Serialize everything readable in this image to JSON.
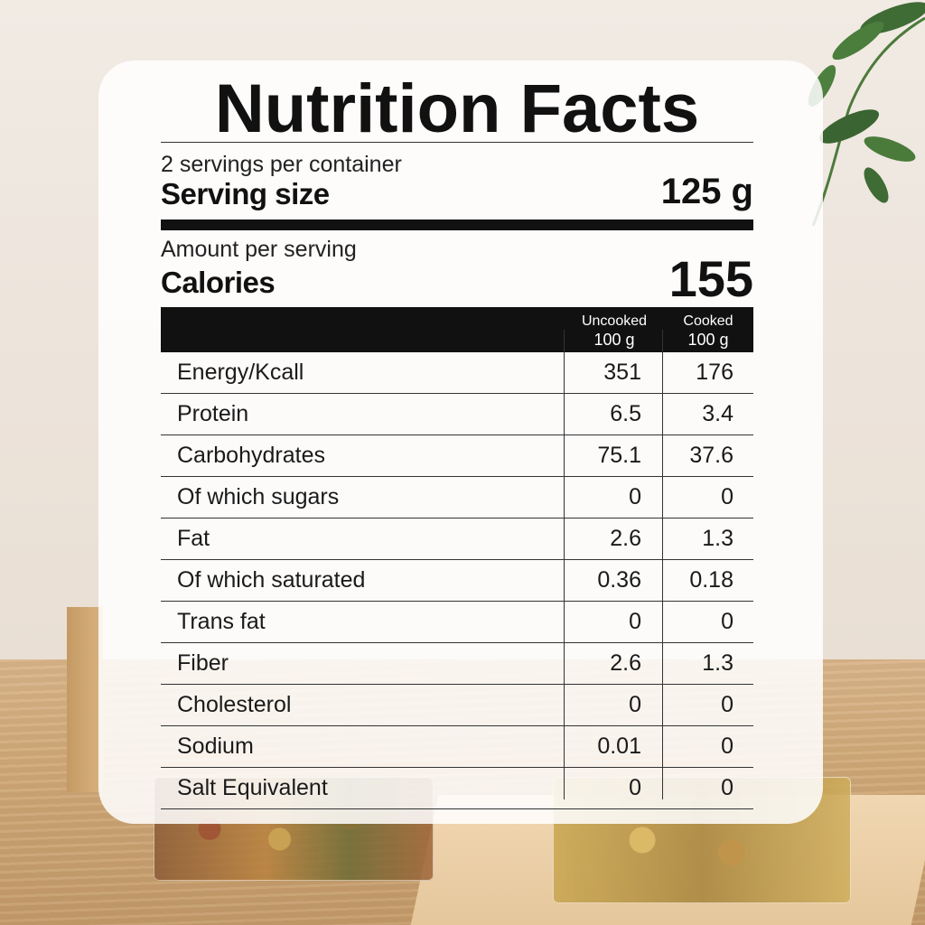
{
  "label": {
    "title": "Nutrition Facts",
    "servings": "2 servings per container",
    "serving_size_label": "Serving size",
    "serving_size_value": "125 g",
    "amount_label": "Amount per serving",
    "calories_label": "Calories",
    "calories_value": "155"
  },
  "table": {
    "columns": [
      {
        "top": "Uncooked",
        "bottom": "100 g"
      },
      {
        "top": "Cooked",
        "bottom": "100 g"
      }
    ],
    "rows": [
      {
        "name": "Energy/Kcall",
        "uncooked": "351",
        "cooked": "176"
      },
      {
        "name": "Protein",
        "uncooked": "6.5",
        "cooked": "3.4"
      },
      {
        "name": "Carbohydrates",
        "uncooked": "75.1",
        "cooked": "37.6"
      },
      {
        "name": "Of which sugars",
        "uncooked": "0",
        "cooked": "0"
      },
      {
        "name": "Fat",
        "uncooked": "2.6",
        "cooked": "1.3"
      },
      {
        "name": "Of which saturated",
        "uncooked": "0.36",
        "cooked": "0.18"
      },
      {
        "name": "Trans fat",
        "uncooked": "0",
        "cooked": "0"
      },
      {
        "name": "Fiber",
        "uncooked": "2.6",
        "cooked": "1.3"
      },
      {
        "name": "Cholesterol",
        "uncooked": "0",
        "cooked": "0"
      },
      {
        "name": "Sodium",
        "uncooked": "0.01",
        "cooked": "0"
      },
      {
        "name": "Salt Equivalent",
        "uncooked": "0",
        "cooked": "0"
      }
    ]
  },
  "colors": {
    "card": "#ffffff",
    "text": "#111111",
    "header_band": "#111111"
  }
}
